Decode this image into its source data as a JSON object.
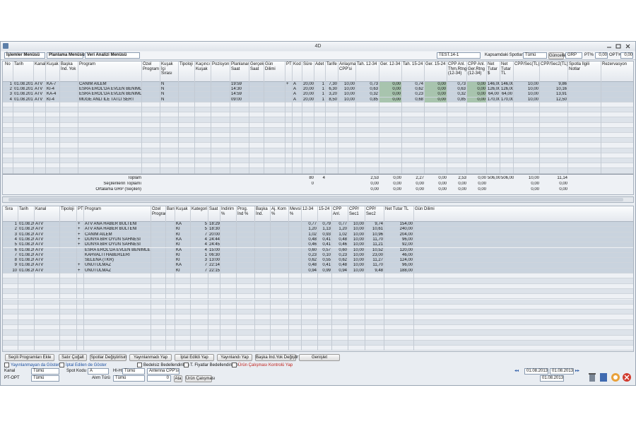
{
  "window": {
    "title": "4D"
  },
  "menu": {
    "items": [
      "İşlemler Menüsü",
      "Planlama Menüsü",
      "Veri Analizi Menüsü"
    ],
    "plan": "TEST.14-1",
    "spots_label": "Kapsamdaki Spotlar",
    "spots_value": "Tümü",
    "refresh": "Güncelle",
    "metric": "GRP",
    "pt_label": "PT%",
    "pt_value": "0,00",
    "opt_label": "OPT%",
    "opt_value": "0,00"
  },
  "upper": {
    "columns": [
      "No",
      "Tarih",
      "Kanal",
      "Kuşak",
      "Başka İnd. Yok",
      "Program",
      "Özel Program",
      "Kuşak İçi Sırası",
      "Tipoloji",
      "Kaçıncı Kuşak",
      "Pozisyon",
      "Planlanan Saat",
      "Gerçek Saat",
      "Gün Dilimi",
      "PT",
      "Kod",
      "Süre",
      "Adet",
      "Tarife",
      "Anlaşma CPP'si",
      "Tah. 12-34",
      "Ger. 12-34",
      "Tah. 15-24",
      "Ger. 15-24",
      "CPP Anl. Thm.Rtng (12-34)",
      "CPP Anl. Ger.Rtng (12-34)",
      "Net Tutar $",
      "Net Tutar TL",
      "CPP/Sec(TL)",
      "CPP/Sec2(TL)",
      "Spotla İlgili Notlar",
      "Rezervasyon"
    ],
    "rows": [
      {
        "0": "1",
        "1": "01.08.2013",
        "2": "ATV",
        "3": "KA-7",
        "5": "CANIM AİLEM",
        "7": "N",
        "11": "19:59",
        "14": "+",
        "15": "A",
        "16": "20,00",
        "17": "1",
        "18": "7,30",
        "19": "10,00",
        "20": "0,73",
        "21": "0,00",
        "22": "0,74",
        "23": "0,00",
        "24": "0,73",
        "25": "0,00",
        "26": "146,00",
        "27": "146,00",
        "28": "10,00",
        "29": "9,86"
      },
      {
        "0": "2",
        "1": "01.08.2013",
        "2": "ATV",
        "3": "KI-4",
        "5": "ESRA EROL'DA EVLEN BENİMLE (ÖZET)",
        "7": "N",
        "11": "14:30",
        "15": "A",
        "16": "20,00",
        "17": "1",
        "18": "6,30",
        "19": "10,00",
        "20": "0,63",
        "21": "0,00",
        "22": "0,62",
        "23": "0,00",
        "24": "0,63",
        "25": "0,00",
        "26": "126,00",
        "27": "126,00",
        "28": "10,00",
        "29": "10,16"
      },
      {
        "0": "3",
        "1": "01.08.2013",
        "2": "ATV",
        "3": "KA-4",
        "5": "ESRA EROL'DA EVLEN BENİMLE",
        "7": "N",
        "11": "14:59",
        "15": "A",
        "16": "20,00",
        "17": "1",
        "18": "3,20",
        "19": "10,00",
        "20": "0,32",
        "21": "0,00",
        "22": "0,23",
        "23": "0,00",
        "24": "0,32",
        "25": "0,00",
        "26": "64,00",
        "27": "64,00",
        "28": "10,00",
        "29": "13,91"
      },
      {
        "0": "4",
        "1": "01.08.2013",
        "2": "ATV",
        "3": "KI-4",
        "5": "MÜGE ANLI İLE TATLI SERT",
        "7": "N",
        "11": "09:00",
        "15": "A",
        "16": "20,00",
        "17": "1",
        "18": "8,50",
        "19": "10,00",
        "20": "0,85",
        "21": "0,00",
        "22": "0,68",
        "23": "0,00",
        "24": "0,85",
        "25": "0,00",
        "26": "170,00",
        "27": "170,00",
        "28": "10,00",
        "29": "12,50"
      }
    ],
    "summary": [
      {
        "5": "Toplam",
        "16": "80",
        "17": "4",
        "20": "2,53",
        "21": "0,00",
        "22": "2,27",
        "23": "0,00",
        "24": "2,53",
        "25": "0,00",
        "26": "506,00",
        "27": "506,00",
        "28": "10,00",
        "29": "11,14"
      },
      {
        "5": "Seçilenlerin Toplamı",
        "16": "0",
        "20": "0,00",
        "21": "0,00",
        "22": "0,00",
        "23": "0,00",
        "24": "0,00",
        "25": "0,00",
        "28": "0,00",
        "29": "0,00"
      },
      {
        "5": "Ortalama GRP (Seçilen)",
        "20": "0,00",
        "21": "0,00",
        "22": "0,00",
        "23": "0,00",
        "24": "0,00",
        "25": "0,00",
        "28": "0,00",
        "29": "0,00"
      }
    ]
  },
  "lower": {
    "columns": [
      "Sıra",
      "Tarih",
      "Kanal",
      "Tipoloji",
      "PT",
      "Program",
      "Özel Program",
      "Bant",
      "Kuşak",
      "Kategori",
      "Saat",
      "İndirim %",
      "Prog. İnd %",
      "Başka İnd.",
      "Aj. Kom %",
      "Mevsim %",
      "12-34",
      "15-24",
      "CPP Anl.",
      "CPP/ Sec1",
      "CPP/ Sec2",
      "Net Tutar TL",
      "Gün Dilimi"
    ],
    "rows": [
      {
        "0": "1",
        "1": "01.08.2013",
        "2": "ATV",
        "4": "+",
        "5": "ATV ANA HABER BÜLTENİ",
        "8": "KA",
        "9": "5",
        "10": "18:29",
        "16": "0,77",
        "17": "0,79",
        "18": "0,77",
        "19": "10,00",
        "20": "9,74",
        "21": "154,00"
      },
      {
        "0": "2",
        "1": "01.08.2013",
        "2": "ATV",
        "4": "+",
        "5": "ATV ANA HABER BÜLTENİ",
        "8": "KI",
        "9": "5",
        "10": "18:30",
        "16": "1,20",
        "17": "1,13",
        "18": "1,20",
        "19": "10,00",
        "20": "10,61",
        "21": "240,00"
      },
      {
        "0": "3",
        "1": "01.08.2013",
        "2": "ATV",
        "4": "+",
        "5": "CANIM AİLEM",
        "8": "KI",
        "9": "7",
        "10": "20:00",
        "16": "1,02",
        "17": "0,93",
        "18": "1,02",
        "19": "10,00",
        "20": "10,96",
        "21": "204,00"
      },
      {
        "0": "4",
        "1": "01.08.2013",
        "2": "ATV",
        "4": "+",
        "5": "DUNYA BİR OYUN SAHNESİ",
        "8": "KA",
        "9": "4",
        "10": "24:44",
        "16": "0,48",
        "17": "0,41",
        "18": "0,48",
        "19": "10,00",
        "20": "11,70",
        "21": "96,00"
      },
      {
        "0": "5",
        "1": "01.08.2013",
        "2": "ATV",
        "4": "+",
        "5": "DUNYA BİR OYUN SAHNESİ",
        "8": "KI",
        "9": "4",
        "10": "24:45",
        "16": "0,46",
        "17": "0,41",
        "18": "0,46",
        "19": "10,00",
        "20": "11,21",
        "21": "92,00"
      },
      {
        "0": "6",
        "1": "01.08.2013",
        "2": "ATV",
        "5": "ESRA EROL'DA EVLEN BENİMLE",
        "8": "KA",
        "9": "4",
        "10": "15:00",
        "16": "0,60",
        "17": "0,57",
        "18": "0,60",
        "19": "10,00",
        "20": "10,52",
        "21": "120,00"
      },
      {
        "0": "7",
        "1": "01.08.2013",
        "2": "ATV",
        "5": "KAHVALTI HABERLERİ",
        "8": "KI",
        "9": "1",
        "10": "06:30",
        "16": "0,23",
        "17": "0,10",
        "18": "0,23",
        "19": "10,00",
        "20": "23,00",
        "21": "46,00"
      },
      {
        "0": "8",
        "1": "01.08.2013",
        "2": "ATV",
        "5": "SELENA (TKR)",
        "8": "KI",
        "9": "3",
        "10": "13:00",
        "16": "0,62",
        "17": "0,55",
        "18": "0,62",
        "19": "10,00",
        "20": "11,27",
        "21": "124,00"
      },
      {
        "0": "9",
        "1": "01.08.2013",
        "2": "ATV",
        "4": "+",
        "5": "UNUTULMAZ",
        "8": "KA",
        "9": "7",
        "10": "22:14",
        "16": "0,48",
        "17": "0,41",
        "18": "0,48",
        "19": "10,00",
        "20": "11,70",
        "21": "96,00"
      },
      {
        "0": "10",
        "1": "01.08.2013",
        "2": "ATV",
        "4": "+",
        "5": "UNUTULMAZ",
        "8": "KI",
        "9": "7",
        "10": "22:15",
        "16": "0,94",
        "17": "0,99",
        "18": "0,94",
        "19": "10,00",
        "20": "9,48",
        "21": "188,00"
      }
    ]
  },
  "buttons": [
    "Seçili Programları Ekle",
    "Satır Çoğalt",
    "Spotlar Değiştirilsin",
    "Yayınlanmadı Yap",
    "İptal Edildi Yap",
    "Yayınlandı Yap",
    "Başka İnd.Yok Değiştir",
    "Genişlet"
  ],
  "checkboxes": [
    "Yayınlanmayan da Göster",
    "İptal Edilen de Göster",
    "Bedelsiz Bedellendirilsin",
    "T. Fiyatlar Bedellendirilsin",
    "Ürün Çalışması Kontrolü Yap"
  ],
  "filters": {
    "kanal_label": "Kanal",
    "kanal": "Tümü",
    "spot_label": "Spot Kodu",
    "spot": "A",
    "hlhs_label": "Hl-Hs",
    "hlhs": "Tümü",
    "cpp": "Antenna CPP'si",
    "ptopt_label": "PT-OPT",
    "ptopt": "Tümü",
    "alim_label": "Alım Türü",
    "alim": "Tümü",
    "count": "0",
    "assign": "Ata",
    "product": "Ürün Çalışması",
    "date_from": "01.08.2013",
    "date_to": "01.08.2013",
    "date_single": "01.08.2013"
  }
}
